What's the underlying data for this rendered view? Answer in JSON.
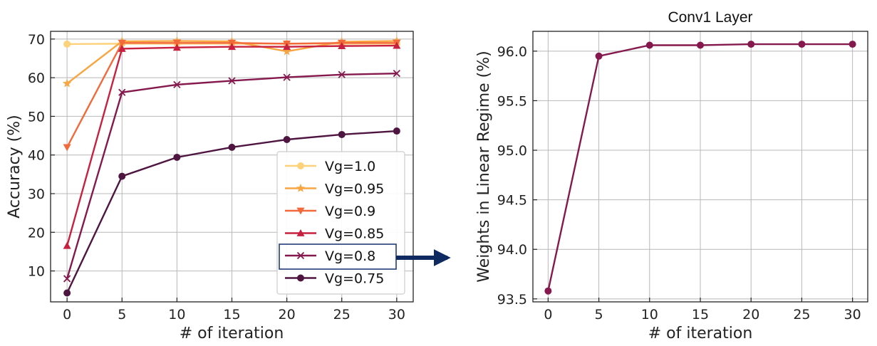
{
  "chart_data": [
    {
      "type": "line",
      "title": "",
      "xlabel": "# of iteration",
      "ylabel": "Accuracy (%)",
      "x": [
        0,
        5,
        10,
        15,
        20,
        25,
        30
      ],
      "xticks": [
        "0",
        "5",
        "10",
        "15",
        "20",
        "25",
        "30"
      ],
      "yticks": [
        "10",
        "20",
        "30",
        "40",
        "50",
        "60",
        "70"
      ],
      "xlim": [
        -1.5,
        31.5
      ],
      "ylim": [
        2,
        72
      ],
      "grid": true,
      "legend_position": "lower-right",
      "series": [
        {
          "name": "Vg=1.0",
          "color": "#fdd27a",
          "marker": "circle",
          "values": [
            68.7,
            68.8,
            68.8,
            68.8,
            68.8,
            68.8,
            68.8
          ]
        },
        {
          "name": "Vg=0.95",
          "color": "#f7a642",
          "marker": "star",
          "values": [
            58.5,
            69.4,
            69.5,
            69.4,
            66.8,
            69.3,
            69.5
          ]
        },
        {
          "name": "Vg=0.9",
          "color": "#f26a3b",
          "marker": "triangle-down",
          "values": [
            42.0,
            69.0,
            69.0,
            69.0,
            68.8,
            69.0,
            69.0
          ]
        },
        {
          "name": "Vg=0.85",
          "color": "#c8203f",
          "marker": "triangle-up",
          "values": [
            16.5,
            67.5,
            67.8,
            68.0,
            68.0,
            68.2,
            68.3
          ]
        },
        {
          "name": "Vg=0.8",
          "color": "#85194d",
          "marker": "x",
          "values": [
            8.0,
            56.2,
            58.2,
            59.2,
            60.1,
            60.8,
            61.1
          ]
        },
        {
          "name": "Vg=0.75",
          "color": "#4e1540",
          "marker": "circle",
          "values": [
            4.3,
            34.5,
            39.4,
            42.0,
            44.0,
            45.3,
            46.2
          ]
        }
      ],
      "highlighted_legend_entry": "Vg=0.8",
      "highlight_color": "#223c7a"
    },
    {
      "type": "line",
      "title": "Conv1 Layer",
      "xlabel": "# of iteration",
      "ylabel": "Weights in Linear Regime (%)",
      "x": [
        0,
        5,
        10,
        15,
        20,
        25,
        30
      ],
      "xticks": [
        "0",
        "5",
        "10",
        "15",
        "20",
        "25",
        "30"
      ],
      "yticks": [
        "93.5",
        "94.0",
        "94.5",
        "95.0",
        "95.5",
        "96.0"
      ],
      "xlim": [
        -1.5,
        31.5
      ],
      "ylim": [
        93.47,
        96.2
      ],
      "grid": true,
      "series": [
        {
          "name": "Conv1",
          "color": "#85194d",
          "marker": "circle",
          "values": [
            93.58,
            95.95,
            96.06,
            96.06,
            96.07,
            96.07,
            96.07
          ]
        }
      ]
    }
  ],
  "arrow": {
    "color": "#0f2a60"
  }
}
